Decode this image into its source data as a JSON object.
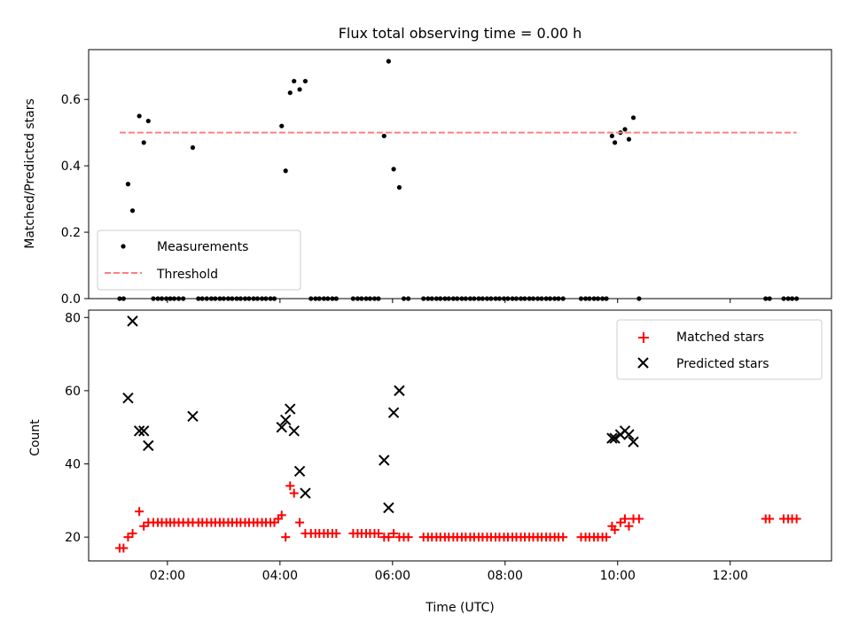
{
  "chart_data": [
    {
      "type": "scatter",
      "title": "Flux total observing time = 0.00 h",
      "xlabel": "",
      "ylabel": "Matched/Predicted stars",
      "xlim": [
        0.6,
        13.8
      ],
      "ylim": [
        0,
        0.75
      ],
      "yticks": [
        0.0,
        0.2,
        0.4,
        0.6
      ],
      "ytick_labels": [
        "0.0",
        "0.2",
        "0.4",
        "0.6"
      ],
      "xticks": [
        2,
        4,
        6,
        8,
        10,
        12
      ],
      "legend": {
        "position": "bottom-left",
        "entries": [
          "Measurements",
          "Threshold"
        ]
      },
      "series": [
        {
          "name": "Measurements",
          "color": "#000000",
          "points": [
            [
              1.3,
              0.345
            ],
            [
              1.38,
              0.265
            ],
            [
              1.5,
              0.55
            ],
            [
              1.58,
              0.47
            ],
            [
              1.66,
              0.535
            ],
            [
              2.45,
              0.455
            ],
            [
              4.03,
              0.52
            ],
            [
              4.1,
              0.385
            ],
            [
              4.18,
              0.62
            ],
            [
              4.25,
              0.655
            ],
            [
              4.35,
              0.63
            ],
            [
              4.45,
              0.655
            ],
            [
              5.85,
              0.49
            ],
            [
              5.93,
              0.715
            ],
            [
              6.02,
              0.39
            ],
            [
              6.12,
              0.335
            ],
            [
              9.9,
              0.49
            ],
            [
              9.95,
              0.47
            ],
            [
              10.05,
              0.5
            ],
            [
              10.13,
              0.51
            ],
            [
              10.2,
              0.48
            ],
            [
              10.28,
              0.545
            ],
            [
              1.15,
              0
            ],
            [
              1.22,
              0
            ],
            [
              1.75,
              0
            ],
            [
              1.83,
              0
            ],
            [
              1.9,
              0
            ],
            [
              1.98,
              0
            ],
            [
              2.05,
              0
            ],
            [
              2.12,
              0
            ],
            [
              2.2,
              0
            ],
            [
              2.28,
              0
            ],
            [
              2.55,
              0
            ],
            [
              2.62,
              0
            ],
            [
              2.7,
              0
            ],
            [
              2.78,
              0
            ],
            [
              2.85,
              0
            ],
            [
              2.93,
              0
            ],
            [
              3.0,
              0
            ],
            [
              3.08,
              0
            ],
            [
              3.15,
              0
            ],
            [
              3.23,
              0
            ],
            [
              3.3,
              0
            ],
            [
              3.38,
              0
            ],
            [
              3.45,
              0
            ],
            [
              3.53,
              0
            ],
            [
              3.6,
              0
            ],
            [
              3.68,
              0
            ],
            [
              3.75,
              0
            ],
            [
              3.83,
              0
            ],
            [
              3.9,
              0
            ],
            [
              4.55,
              0
            ],
            [
              4.63,
              0
            ],
            [
              4.7,
              0
            ],
            [
              4.78,
              0
            ],
            [
              4.85,
              0
            ],
            [
              4.93,
              0
            ],
            [
              5.0,
              0
            ],
            [
              5.3,
              0
            ],
            [
              5.38,
              0
            ],
            [
              5.45,
              0
            ],
            [
              5.53,
              0
            ],
            [
              5.6,
              0
            ],
            [
              5.68,
              0
            ],
            [
              5.75,
              0
            ],
            [
              6.2,
              0
            ],
            [
              6.28,
              0
            ],
            [
              6.55,
              0
            ],
            [
              6.63,
              0
            ],
            [
              6.7,
              0
            ],
            [
              6.78,
              0
            ],
            [
              6.85,
              0
            ],
            [
              6.93,
              0
            ],
            [
              7.0,
              0
            ],
            [
              7.08,
              0
            ],
            [
              7.15,
              0
            ],
            [
              7.23,
              0
            ],
            [
              7.3,
              0
            ],
            [
              7.38,
              0
            ],
            [
              7.45,
              0
            ],
            [
              7.53,
              0
            ],
            [
              7.6,
              0
            ],
            [
              7.68,
              0
            ],
            [
              7.75,
              0
            ],
            [
              7.83,
              0
            ],
            [
              7.9,
              0
            ],
            [
              7.98,
              0
            ],
            [
              8.05,
              0
            ],
            [
              8.13,
              0
            ],
            [
              8.2,
              0
            ],
            [
              8.28,
              0
            ],
            [
              8.35,
              0
            ],
            [
              8.43,
              0
            ],
            [
              8.5,
              0
            ],
            [
              8.58,
              0
            ],
            [
              8.65,
              0
            ],
            [
              8.73,
              0
            ],
            [
              8.8,
              0
            ],
            [
              8.88,
              0
            ],
            [
              8.95,
              0
            ],
            [
              9.03,
              0
            ],
            [
              9.35,
              0
            ],
            [
              9.43,
              0
            ],
            [
              9.5,
              0
            ],
            [
              9.58,
              0
            ],
            [
              9.65,
              0
            ],
            [
              9.73,
              0
            ],
            [
              9.8,
              0
            ],
            [
              10.38,
              0
            ],
            [
              12.63,
              0
            ],
            [
              12.7,
              0
            ],
            [
              12.95,
              0
            ],
            [
              13.03,
              0
            ],
            [
              13.1,
              0
            ],
            [
              13.18,
              0
            ]
          ]
        },
        {
          "name": "Threshold",
          "color": "#ff7f7f",
          "style": "dashed",
          "x": [
            1.15,
            13.18
          ],
          "y": [
            0.5,
            0.5
          ]
        }
      ]
    },
    {
      "type": "scatter",
      "title": "",
      "xlabel": "Time (UTC)",
      "ylabel": "Count",
      "xlim": [
        0.6,
        13.8
      ],
      "ylim": [
        13.5,
        82
      ],
      "yticks": [
        20,
        40,
        60,
        80
      ],
      "ytick_labels": [
        "20",
        "40",
        "60",
        "80"
      ],
      "xticks": [
        2,
        4,
        6,
        8,
        10,
        12
      ],
      "xtick_labels": [
        "02:00",
        "04:00",
        "06:00",
        "08:00",
        "10:00",
        "12:00"
      ],
      "legend": {
        "position": "top-right",
        "entries": [
          "Matched stars",
          "Predicted stars"
        ]
      },
      "series": [
        {
          "name": "Matched stars",
          "color": "#ff0000",
          "marker": "plus",
          "points": [
            [
              1.15,
              17
            ],
            [
              1.22,
              17
            ],
            [
              1.3,
              20
            ],
            [
              1.38,
              21
            ],
            [
              1.5,
              27
            ],
            [
              1.58,
              23
            ],
            [
              1.66,
              24
            ],
            [
              1.75,
              24
            ],
            [
              1.83,
              24
            ],
            [
              1.9,
              24
            ],
            [
              1.98,
              24
            ],
            [
              2.05,
              24
            ],
            [
              2.12,
              24
            ],
            [
              2.2,
              24
            ],
            [
              2.28,
              24
            ],
            [
              2.37,
              24
            ],
            [
              2.45,
              24
            ],
            [
              2.55,
              24
            ],
            [
              2.62,
              24
            ],
            [
              2.7,
              24
            ],
            [
              2.78,
              24
            ],
            [
              2.85,
              24
            ],
            [
              2.93,
              24
            ],
            [
              3.0,
              24
            ],
            [
              3.08,
              24
            ],
            [
              3.15,
              24
            ],
            [
              3.23,
              24
            ],
            [
              3.3,
              24
            ],
            [
              3.38,
              24
            ],
            [
              3.45,
              24
            ],
            [
              3.53,
              24
            ],
            [
              3.6,
              24
            ],
            [
              3.68,
              24
            ],
            [
              3.75,
              24
            ],
            [
              3.83,
              24
            ],
            [
              3.9,
              24
            ],
            [
              3.97,
              25
            ],
            [
              4.03,
              26
            ],
            [
              4.1,
              20
            ],
            [
              4.18,
              34
            ],
            [
              4.25,
              32
            ],
            [
              4.35,
              24
            ],
            [
              4.45,
              21
            ],
            [
              4.55,
              21
            ],
            [
              4.63,
              21
            ],
            [
              4.7,
              21
            ],
            [
              4.78,
              21
            ],
            [
              4.85,
              21
            ],
            [
              4.93,
              21
            ],
            [
              5.0,
              21
            ],
            [
              5.3,
              21
            ],
            [
              5.38,
              21
            ],
            [
              5.45,
              21
            ],
            [
              5.53,
              21
            ],
            [
              5.6,
              21
            ],
            [
              5.68,
              21
            ],
            [
              5.75,
              21
            ],
            [
              5.85,
              20
            ],
            [
              5.93,
              20
            ],
            [
              6.02,
              21
            ],
            [
              6.12,
              20
            ],
            [
              6.2,
              20
            ],
            [
              6.28,
              20
            ],
            [
              6.55,
              20
            ],
            [
              6.63,
              20
            ],
            [
              6.7,
              20
            ],
            [
              6.78,
              20
            ],
            [
              6.85,
              20
            ],
            [
              6.93,
              20
            ],
            [
              7.0,
              20
            ],
            [
              7.08,
              20
            ],
            [
              7.15,
              20
            ],
            [
              7.23,
              20
            ],
            [
              7.3,
              20
            ],
            [
              7.38,
              20
            ],
            [
              7.45,
              20
            ],
            [
              7.53,
              20
            ],
            [
              7.6,
              20
            ],
            [
              7.68,
              20
            ],
            [
              7.75,
              20
            ],
            [
              7.83,
              20
            ],
            [
              7.9,
              20
            ],
            [
              7.98,
              20
            ],
            [
              8.05,
              20
            ],
            [
              8.13,
              20
            ],
            [
              8.2,
              20
            ],
            [
              8.28,
              20
            ],
            [
              8.35,
              20
            ],
            [
              8.43,
              20
            ],
            [
              8.5,
              20
            ],
            [
              8.58,
              20
            ],
            [
              8.65,
              20
            ],
            [
              8.73,
              20
            ],
            [
              8.8,
              20
            ],
            [
              8.88,
              20
            ],
            [
              8.95,
              20
            ],
            [
              9.03,
              20
            ],
            [
              9.35,
              20
            ],
            [
              9.43,
              20
            ],
            [
              9.5,
              20
            ],
            [
              9.58,
              20
            ],
            [
              9.65,
              20
            ],
            [
              9.73,
              20
            ],
            [
              9.8,
              20
            ],
            [
              9.9,
              23
            ],
            [
              9.95,
              22
            ],
            [
              10.05,
              24
            ],
            [
              10.13,
              25
            ],
            [
              10.2,
              23
            ],
            [
              10.28,
              25
            ],
            [
              10.38,
              25
            ],
            [
              12.63,
              25
            ],
            [
              12.7,
              25
            ],
            [
              12.95,
              25
            ],
            [
              13.03,
              25
            ],
            [
              13.1,
              25
            ],
            [
              13.18,
              25
            ]
          ]
        },
        {
          "name": "Predicted stars",
          "color": "#000000",
          "marker": "x",
          "points": [
            [
              1.3,
              58
            ],
            [
              1.38,
              79
            ],
            [
              1.5,
              49
            ],
            [
              1.58,
              49
            ],
            [
              1.66,
              45
            ],
            [
              2.45,
              53
            ],
            [
              4.03,
              50
            ],
            [
              4.1,
              52
            ],
            [
              4.18,
              55
            ],
            [
              4.25,
              49
            ],
            [
              4.35,
              38
            ],
            [
              4.45,
              32
            ],
            [
              5.85,
              41
            ],
            [
              5.93,
              28
            ],
            [
              6.02,
              54
            ],
            [
              6.12,
              60
            ],
            [
              9.9,
              47
            ],
            [
              9.95,
              47
            ],
            [
              10.05,
              48
            ],
            [
              10.13,
              49
            ],
            [
              10.2,
              48
            ],
            [
              10.28,
              46
            ]
          ]
        }
      ]
    }
  ]
}
